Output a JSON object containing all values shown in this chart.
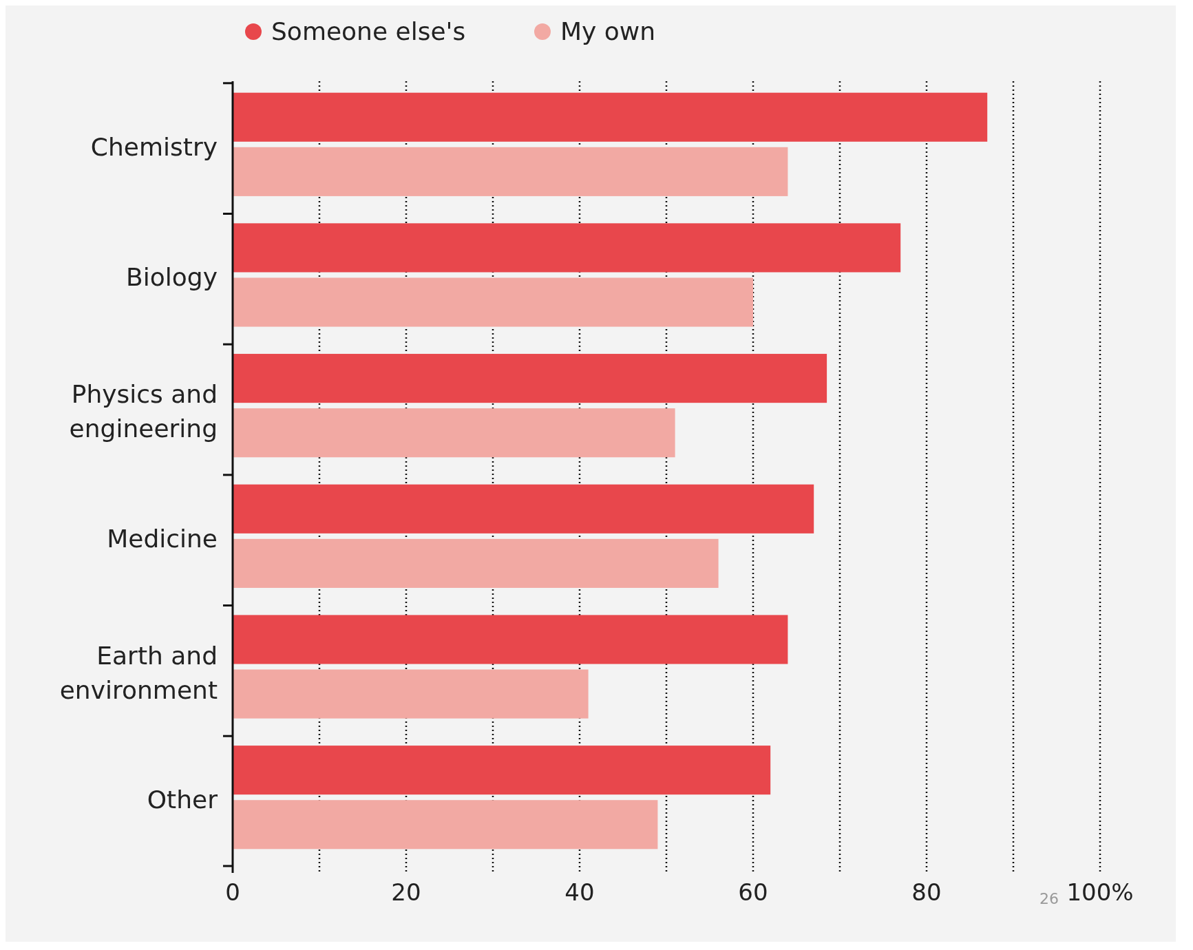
{
  "chart_data": {
    "type": "bar",
    "orientation": "horizontal",
    "categories": [
      "Chemistry",
      "Biology",
      "Physics and engineering",
      "Medicine",
      "Earth and environment",
      "Other"
    ],
    "series": [
      {
        "name": "Someone else's",
        "color": "#e8474c",
        "values": [
          87,
          77,
          68.5,
          67,
          64,
          62
        ]
      },
      {
        "name": "My own",
        "color": "#f2a9a3",
        "values": [
          64,
          60,
          51,
          56,
          41,
          49
        ]
      }
    ],
    "xlim": [
      0,
      100
    ],
    "xticks": [
      0,
      {
        "value": 10,
        "label": null
      },
      20,
      {
        "value": 30,
        "label": null
      },
      40,
      {
        "value": 50,
        "label": null
      },
      60,
      {
        "value": 70,
        "label": null
      },
      80,
      {
        "value": 90,
        "label": null
      },
      {
        "value": 100,
        "label": "100%"
      }
    ],
    "grid": "x",
    "legend": "top",
    "annotations": [
      "26"
    ]
  }
}
